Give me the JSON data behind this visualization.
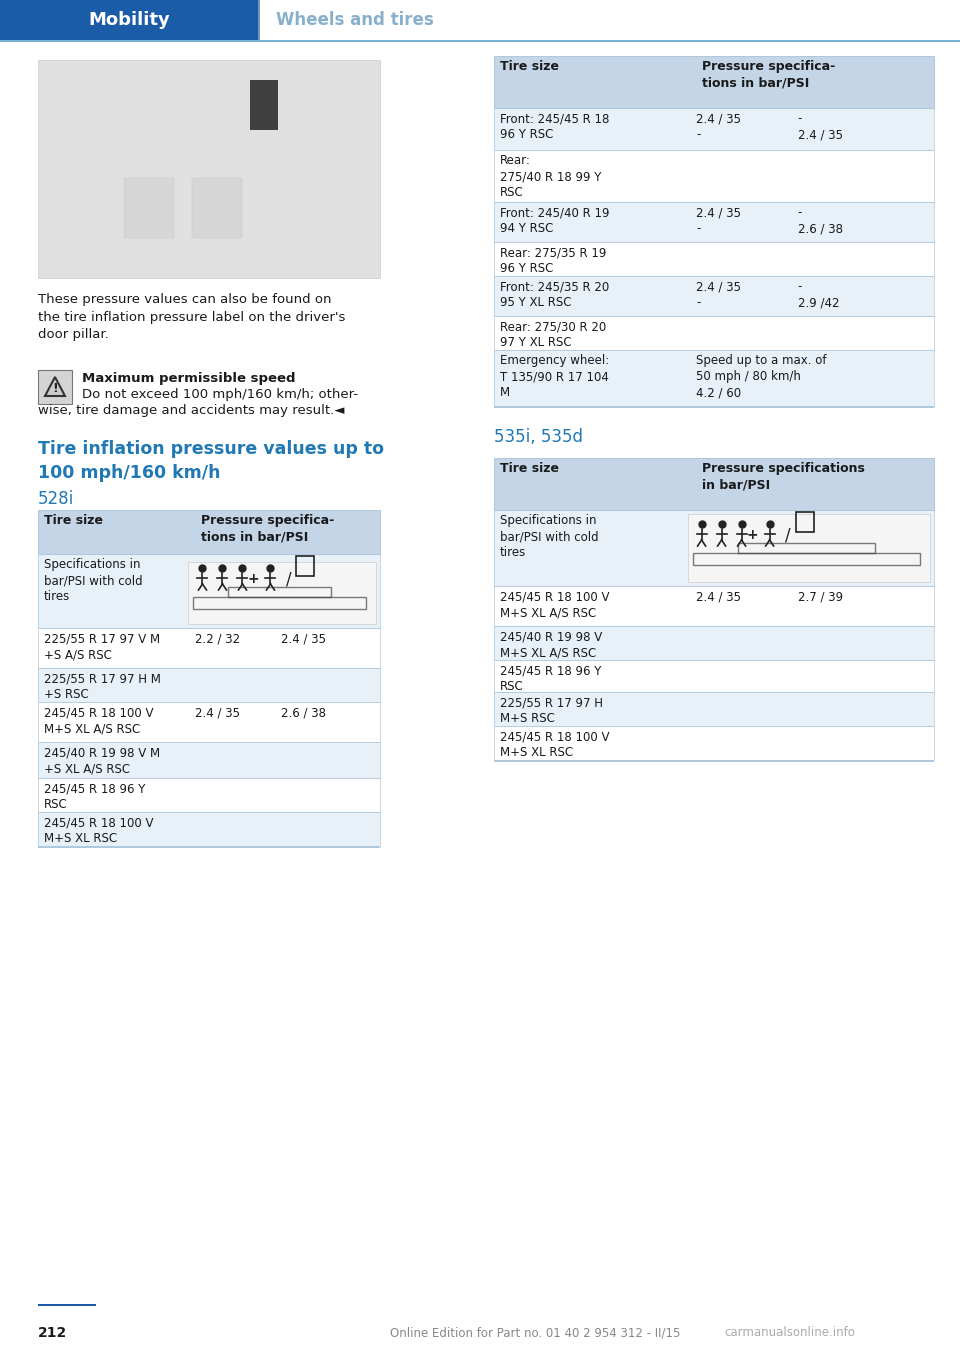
{
  "header_blue": "#1a5ca8",
  "header_line_blue": "#7aafd4",
  "section_blue": "#2079b4",
  "title_blue": "#2079b4",
  "table_header_bg": "#c5d5e8",
  "table_row_alt": "#e8f0f8",
  "table_border": "#b0c8dc",
  "text_color": "#1a1a1a",
  "page_bg": "#ffffff",
  "header_label": "Mobility",
  "header_sub": "Wheels and tires",
  "page_number": "212",
  "footer_text": "Online Edition for Part no. 01 40 2 954 312 - II/15",
  "body_text1": "These pressure values can also be found on\nthe tire inflation pressure label on the driver's\ndoor pillar.",
  "warning_title": "Maximum permissible speed",
  "warning_body": "Do not exceed 100 mph/160 km/h; other-\nwise, tire damage and accidents may result.",
  "section_title": "Tire inflation pressure values up to\n100 mph/160 km/h",
  "subsection1": "528i",
  "subsection2": "535i, 535d"
}
